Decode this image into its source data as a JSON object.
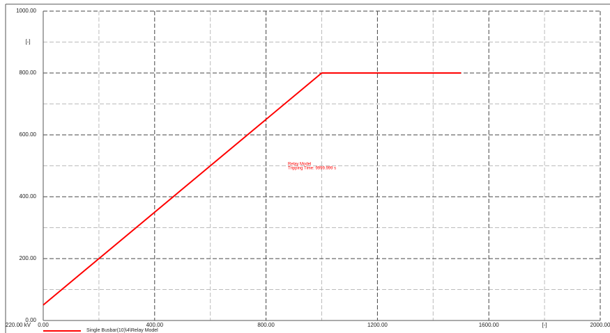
{
  "chart_data": {
    "type": "line",
    "x": [
      0,
      1000,
      1500
    ],
    "series": [
      {
        "name": "Single Busbar(10)\\4\\Relay Model",
        "color": "#ff0000",
        "values": [
          50,
          800,
          800
        ]
      }
    ],
    "xlim": [
      0,
      2000
    ],
    "ylim": [
      0,
      1000
    ],
    "xticks": [
      {
        "value": 0,
        "label": "0.00"
      },
      {
        "value": 400,
        "label": "400.00"
      },
      {
        "value": 800,
        "label": "800.00"
      },
      {
        "value": 1200,
        "label": "1200.00"
      },
      {
        "value": 1600,
        "label": "1600.00"
      },
      {
        "value": 2000,
        "label": "2000.00"
      }
    ],
    "yticks": [
      {
        "value": 0,
        "label": "0.00"
      },
      {
        "value": 200,
        "label": "200.00"
      },
      {
        "value": 400,
        "label": "400.00"
      },
      {
        "value": 600,
        "label": "600.00"
      },
      {
        "value": 800,
        "label": "800.00"
      },
      {
        "value": 1000,
        "label": "1000.00"
      }
    ],
    "xminor": [
      200,
      600,
      1000,
      1400,
      1800
    ],
    "yminor": [
      100,
      300,
      500,
      700,
      900
    ],
    "xlabel": "[-]",
    "ylabel": "[-]",
    "xlabel_at": 1800,
    "ylabel_at": 900,
    "corner_label": "220.00 kV",
    "annotation": [
      "Relay Model",
      "Tripping Time: 9999.999 s"
    ],
    "annotation_color": "#ff0000",
    "grid": true
  }
}
